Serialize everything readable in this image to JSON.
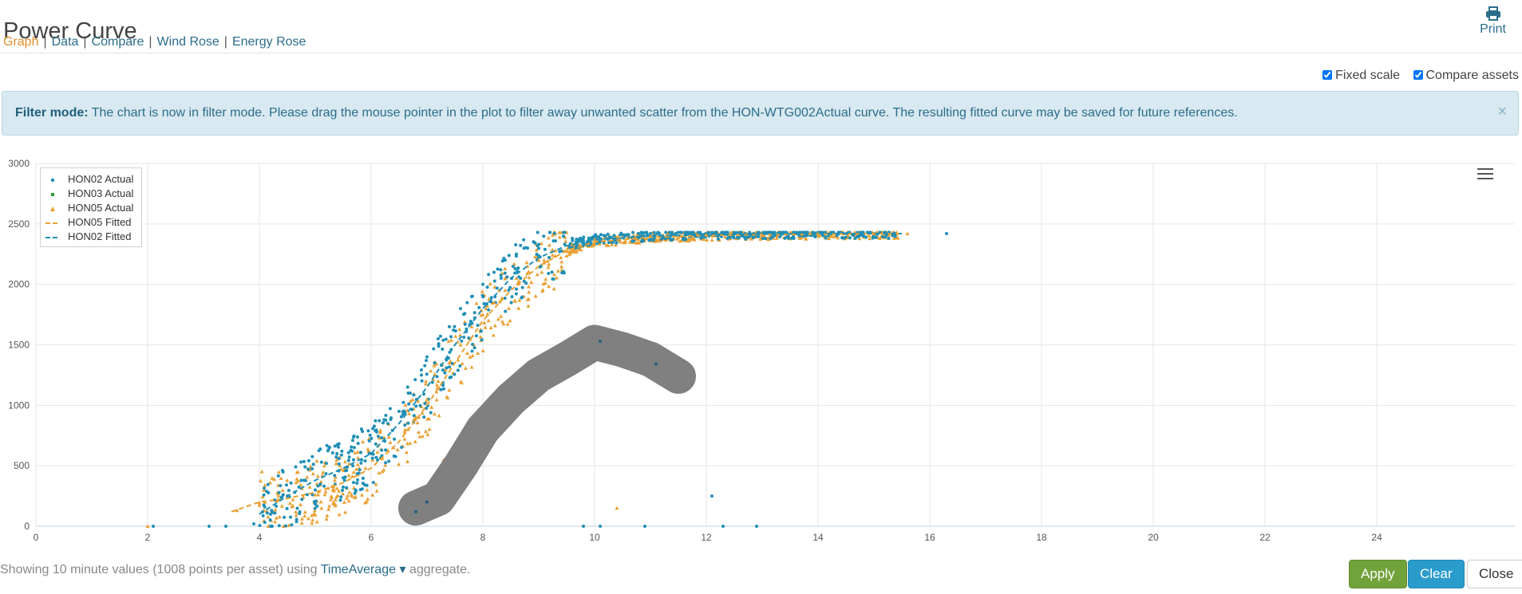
{
  "page": {
    "title": "Power Curve"
  },
  "nav": {
    "items": [
      "Graph",
      "Data",
      "Compare",
      "Wind Rose",
      "Energy Rose"
    ],
    "active": "Graph"
  },
  "print": {
    "label": "Print",
    "icon": "printer-icon"
  },
  "options": {
    "fixed_scale": "Fixed scale",
    "compare_assets": "Compare assets",
    "fixed_scale_checked": true,
    "compare_assets_checked": true
  },
  "alert": {
    "label": "Filter mode:",
    "message": "The chart is now in filter mode. Please drag the mouse pointer in the plot to filter away unwanted scatter from the HON-WTG002Actual curve. The resulting fitted curve may be saved for future references.",
    "close": "×"
  },
  "legend": {
    "items": [
      {
        "name": "HON02 Actual",
        "symbol": "circle",
        "color": "#1f8fb6"
      },
      {
        "name": "HON03 Actual",
        "symbol": "square",
        "color": "#2f9d3a"
      },
      {
        "name": "HON05 Actual",
        "symbol": "triangle",
        "color": "#e9a032"
      },
      {
        "name": "HON05 Fitted",
        "symbol": "dash",
        "color": "#e9a032"
      },
      {
        "name": "HON02 Fitted",
        "symbol": "dash",
        "color": "#1f8fb6"
      }
    ]
  },
  "chart_data": {
    "type": "scatter",
    "xlim": [
      0,
      25
    ],
    "ylim": [
      0,
      3000
    ],
    "xticks": [
      0,
      2,
      4,
      6,
      8,
      10,
      12,
      14,
      16,
      18,
      20,
      22,
      24
    ],
    "yticks": [
      0,
      500,
      1000,
      1500,
      2000,
      2500,
      3000
    ],
    "grid": true,
    "legend_position": "top-left",
    "series": [
      {
        "name": "HON02 Actual",
        "type": "scatter",
        "color": "#1f8fb6",
        "points": [
          [
            2.1,
            0
          ],
          [
            3.1,
            0
          ],
          [
            3.4,
            0
          ],
          [
            3.9,
            20
          ],
          [
            4.2,
            100
          ],
          [
            4.5,
            250
          ],
          [
            4.8,
            380
          ],
          [
            5.0,
            300
          ],
          [
            5.2,
            520
          ],
          [
            5.5,
            400
          ],
          [
            5.7,
            650
          ],
          [
            6.0,
            600
          ],
          [
            6.1,
            780
          ],
          [
            6.3,
            850
          ],
          [
            6.5,
            950
          ],
          [
            6.7,
            1100
          ],
          [
            6.9,
            1250
          ],
          [
            7.0,
            1400
          ],
          [
            7.2,
            1550
          ],
          [
            7.4,
            1650
          ],
          [
            7.6,
            1800
          ],
          [
            7.8,
            1900
          ],
          [
            8.0,
            2000
          ],
          [
            8.2,
            2100
          ],
          [
            8.4,
            2200
          ],
          [
            8.6,
            2250
          ],
          [
            8.8,
            2300
          ],
          [
            9.0,
            2330
          ],
          [
            9.3,
            2360
          ],
          [
            9.6,
            2380
          ],
          [
            10.0,
            2400
          ],
          [
            10.5,
            2410
          ],
          [
            11.0,
            2420
          ],
          [
            12.0,
            2420
          ],
          [
            13.0,
            2420
          ],
          [
            14.0,
            2420
          ],
          [
            15.0,
            2420
          ],
          [
            16.3,
            2420
          ],
          [
            6.6,
            100
          ],
          [
            6.9,
            180
          ],
          [
            7.3,
            400
          ],
          [
            10.1,
            1530
          ],
          [
            11.1,
            1340
          ],
          [
            12.1,
            250
          ],
          [
            9.8,
            0
          ],
          [
            10.1,
            0
          ],
          [
            10.9,
            0
          ],
          [
            12.3,
            0
          ],
          [
            12.9,
            0
          ]
        ]
      },
      {
        "name": "HON03 Actual",
        "type": "scatter",
        "color": "#2f9d3a",
        "points": []
      },
      {
        "name": "HON05 Actual",
        "type": "scatter",
        "color": "#e9a032",
        "points": [
          [
            2.0,
            0
          ],
          [
            3.6,
            130
          ],
          [
            4.1,
            200
          ],
          [
            4.6,
            220
          ],
          [
            5.0,
            260
          ],
          [
            5.3,
            330
          ],
          [
            5.6,
            420
          ],
          [
            5.9,
            480
          ],
          [
            6.2,
            560
          ],
          [
            6.4,
            650
          ],
          [
            6.6,
            780
          ],
          [
            6.8,
            900
          ],
          [
            7.0,
            1050
          ],
          [
            7.2,
            1200
          ],
          [
            7.4,
            1350
          ],
          [
            7.6,
            1500
          ],
          [
            7.8,
            1650
          ],
          [
            8.0,
            1750
          ],
          [
            8.2,
            1850
          ],
          [
            8.4,
            1950
          ],
          [
            8.6,
            2050
          ],
          [
            8.8,
            2150
          ],
          [
            9.0,
            2200
          ],
          [
            9.3,
            2280
          ],
          [
            9.6,
            2330
          ],
          [
            10.0,
            2370
          ],
          [
            10.5,
            2390
          ],
          [
            11.0,
            2400
          ],
          [
            12.0,
            2410
          ],
          [
            13.0,
            2410
          ],
          [
            14.0,
            2420
          ],
          [
            15.0,
            2420
          ],
          [
            15.6,
            2420
          ],
          [
            7.3,
            550
          ],
          [
            10.4,
            150
          ],
          [
            10.1,
            1430
          ]
        ]
      },
      {
        "name": "HON05 Fitted",
        "type": "line",
        "color": "#e9a032",
        "points": [
          [
            3.5,
            120
          ],
          [
            4.0,
            200
          ],
          [
            4.5,
            230
          ],
          [
            5.0,
            280
          ],
          [
            5.5,
            360
          ],
          [
            6.0,
            480
          ],
          [
            6.5,
            700
          ],
          [
            7.0,
            1000
          ],
          [
            7.5,
            1350
          ],
          [
            8.0,
            1700
          ],
          [
            8.5,
            1950
          ],
          [
            9.0,
            2150
          ],
          [
            9.5,
            2280
          ],
          [
            10.0,
            2350
          ],
          [
            11.0,
            2390
          ],
          [
            12.0,
            2405
          ],
          [
            13.0,
            2410
          ],
          [
            14.0,
            2415
          ],
          [
            15.0,
            2420
          ],
          [
            15.5,
            2420
          ]
        ]
      },
      {
        "name": "HON02 Fitted",
        "type": "line",
        "color": "#1f8fb6",
        "points": [
          [
            4.0,
            100
          ],
          [
            4.5,
            250
          ],
          [
            5.0,
            380
          ],
          [
            5.5,
            480
          ],
          [
            6.0,
            600
          ],
          [
            6.5,
            850
          ],
          [
            7.0,
            1150
          ],
          [
            7.5,
            1500
          ],
          [
            8.0,
            1800
          ],
          [
            8.5,
            2050
          ],
          [
            9.0,
            2220
          ],
          [
            9.5,
            2320
          ],
          [
            10.0,
            2370
          ],
          [
            11.0,
            2400
          ],
          [
            12.0,
            2410
          ],
          [
            13.0,
            2415
          ],
          [
            14.0,
            2420
          ],
          [
            15.0,
            2420
          ],
          [
            15.5,
            2420
          ]
        ]
      }
    ],
    "filter_stroke": [
      [
        6.8,
        150
      ],
      [
        7.2,
        230
      ],
      [
        7.6,
        500
      ],
      [
        8.0,
        800
      ],
      [
        8.5,
        1050
      ],
      [
        9.0,
        1250
      ],
      [
        9.5,
        1380
      ],
      [
        10.0,
        1520
      ],
      [
        10.5,
        1460
      ],
      [
        11.0,
        1380
      ],
      [
        11.5,
        1240
      ]
    ]
  },
  "footer": {
    "prefix": "Showing 10 minute values (1008 points per asset) using",
    "aggregate": "TimeAverage",
    "suffix": "aggregate."
  },
  "buttons": {
    "apply": "Apply",
    "clear": "Clear",
    "close": "Close"
  }
}
